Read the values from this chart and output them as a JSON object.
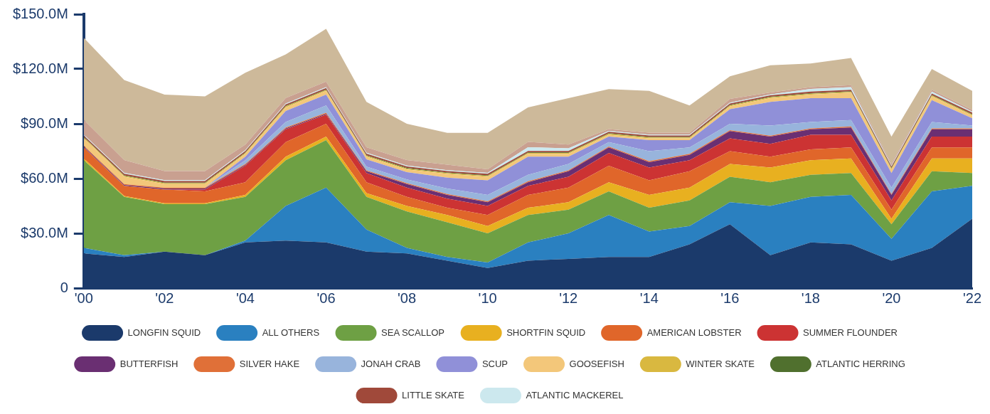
{
  "chart_data": {
    "type": "area",
    "stacked": true,
    "x": [
      2000,
      2001,
      2002,
      2003,
      2004,
      2005,
      2006,
      2007,
      2008,
      2009,
      2010,
      2011,
      2012,
      2013,
      2014,
      2015,
      2016,
      2017,
      2018,
      2019,
      2020,
      2021,
      2022
    ],
    "xlim": [
      2000,
      2022
    ],
    "xticks": [
      {
        "value": 2000,
        "label": "'00"
      },
      {
        "value": 2002,
        "label": "'02"
      },
      {
        "value": 2004,
        "label": "'04"
      },
      {
        "value": 2006,
        "label": "'06"
      },
      {
        "value": 2008,
        "label": "'08"
      },
      {
        "value": 2010,
        "label": "'10"
      },
      {
        "value": 2012,
        "label": "'12"
      },
      {
        "value": 2014,
        "label": "'14"
      },
      {
        "value": 2016,
        "label": "'16"
      },
      {
        "value": 2018,
        "label": "'18"
      },
      {
        "value": 2020,
        "label": "'20"
      },
      {
        "value": 2022,
        "label": "'22"
      }
    ],
    "ylim": [
      0,
      150
    ],
    "yticks": [
      0,
      {
        "value": 30,
        "label": "$30.0M"
      },
      {
        "value": 60,
        "label": "$60.0M"
      },
      {
        "value": 90,
        "label": "$90.0M"
      },
      {
        "value": 120,
        "label": "$120.0M"
      },
      {
        "value": 150,
        "label": "$150.0M"
      }
    ],
    "grid": false,
    "legend": "bottom",
    "series": [
      {
        "name": "LONGFIN SQUID",
        "color": "#1b3a6b",
        "values": [
          19,
          17,
          20,
          18,
          25,
          26,
          25,
          20,
          19,
          15,
          11,
          15,
          16,
          17,
          17,
          24,
          35,
          18,
          25,
          24,
          15,
          22,
          38
        ]
      },
      {
        "name": "ALL OTHERS",
        "color": "#2a80c0",
        "values": [
          3,
          1,
          0,
          0,
          1,
          19,
          30,
          12,
          3,
          2,
          3,
          10,
          14,
          23,
          14,
          10,
          12,
          27,
          25,
          27,
          12,
          31,
          18
        ]
      },
      {
        "name": "SEA SCALLOP",
        "color": "#6ea044",
        "values": [
          48,
          32,
          26,
          28,
          24,
          25,
          26,
          18,
          20,
          19,
          16,
          15,
          13,
          13,
          13,
          14,
          14,
          13,
          12,
          12,
          8,
          11,
          7
        ]
      },
      {
        "name": "SHORTFIN SQUID",
        "color": "#e8b020",
        "values": [
          1,
          0.5,
          0.5,
          0.5,
          1,
          2,
          2,
          2,
          3,
          4,
          4,
          4,
          4,
          5,
          7,
          7,
          7,
          8,
          8,
          8,
          3,
          7,
          8
        ]
      },
      {
        "name": "AMERICAN LOBSTER",
        "color": "#e0662a",
        "values": [
          6,
          5.5,
          7.5,
          6.5,
          7,
          8,
          7,
          6,
          5,
          4,
          6,
          7,
          8,
          9,
          8,
          9,
          7,
          6,
          6,
          6,
          5,
          6,
          6
        ]
      },
      {
        "name": "SUMMER FLOUNDER",
        "color": "#cc3333",
        "values": [
          0,
          0,
          0,
          1,
          9,
          7,
          5,
          5,
          5,
          5,
          5,
          5,
          6,
          7,
          7,
          6,
          7,
          7,
          8,
          7,
          5,
          6,
          6
        ]
      },
      {
        "name": "BUTTERFISH",
        "color": "#6a2f72",
        "values": [
          0.5,
          0.5,
          0.5,
          0.5,
          0.5,
          0.5,
          0.5,
          1,
          2,
          2,
          2,
          2,
          3,
          3,
          3,
          3,
          4,
          4,
          3,
          4,
          3,
          4,
          4
        ]
      },
      {
        "name": "SILVER HAKE",
        "color": "#e07038",
        "values": [
          0.5,
          0.5,
          0.5,
          0.5,
          0.5,
          0.5,
          0.5,
          0.5,
          0.5,
          0.5,
          0.5,
          0.5,
          0.5,
          0.5,
          0.5,
          0.5,
          0.5,
          0.5,
          0.5,
          0.5,
          0.5,
          0.5,
          0.5
        ]
      },
      {
        "name": "JONAH CRAB",
        "color": "#98b4dc",
        "values": [
          0,
          0,
          0,
          0,
          2,
          3,
          4,
          2,
          2,
          3,
          3.5,
          3.5,
          3.5,
          2.5,
          5.5,
          3.5,
          3.5,
          5.5,
          3.5,
          3.5,
          3.5,
          3.5,
          1.5
        ]
      },
      {
        "name": "SCUP",
        "color": "#9090d8",
        "values": [
          0,
          0,
          0,
          0,
          2,
          6,
          6,
          4,
          4,
          6,
          8,
          10,
          4,
          3,
          6,
          4,
          8,
          13,
          13,
          12,
          8,
          12,
          4
        ]
      },
      {
        "name": "GOOSEFISH",
        "color": "#f3c77a",
        "values": [
          4,
          4,
          2,
          2,
          1.5,
          2,
          2,
          1.5,
          1.5,
          2,
          2,
          1.5,
          1.5,
          1,
          1,
          1,
          1.5,
          2,
          2,
          3,
          2,
          2,
          1.5
        ]
      },
      {
        "name": "WINTER SKATE",
        "color": "#d9b840",
        "values": [
          0.5,
          0.5,
          0.5,
          0.5,
          0.5,
          0.5,
          0.5,
          0.5,
          0.5,
          0.5,
          0.5,
          0.5,
          0.5,
          0.5,
          0.5,
          0.5,
          0.5,
          0.5,
          0.5,
          0.5,
          0.5,
          0.5,
          0.5
        ]
      },
      {
        "name": "ATLANTIC HERRING",
        "color": "#50702e",
        "values": [
          0.3,
          0.3,
          0.3,
          0.3,
          0.3,
          0.3,
          0.3,
          0.3,
          0.3,
          0.3,
          0.3,
          0.3,
          0.3,
          0.3,
          0.3,
          0.3,
          0.3,
          0.3,
          0.3,
          0.3,
          0.3,
          0.3,
          0.3
        ]
      },
      {
        "name": "LITTLE SKATE",
        "color": "#a0493a",
        "values": [
          0.8,
          0.8,
          0.8,
          0.8,
          0.8,
          0.8,
          0.8,
          0.8,
          0.8,
          0.8,
          0.8,
          0.8,
          0.8,
          0.8,
          0.8,
          0.8,
          0.8,
          0.8,
          0.8,
          0.8,
          0.8,
          0.8,
          0.8
        ]
      },
      {
        "name": "ATLANTIC MACKEREL",
        "color": "#cce8ee",
        "values": [
          0.5,
          0.5,
          0.5,
          0.5,
          0.5,
          0.5,
          0.5,
          0.5,
          0.5,
          0.5,
          0.5,
          2,
          1.5,
          0.5,
          0.5,
          0.5,
          0.5,
          0.5,
          1.5,
          1.5,
          0.5,
          1,
          0.5
        ]
      },
      {
        "color": "#c9a090",
        "values": [
          8,
          7,
          5,
          5,
          3,
          3,
          3,
          3,
          3,
          3,
          2,
          3,
          2,
          1,
          1,
          1,
          2,
          1,
          1,
          1,
          1,
          1,
          1
        ]
      },
      {
        "color": "#cdb99a",
        "values": [
          44.9,
          43.9,
          41.9,
          40.9,
          39.4,
          23.9,
          28.9,
          24.9,
          19.9,
          17.4,
          19.9,
          18.9,
          25.4,
          21.9,
          22.9,
          14.9,
          12.4,
          14.9,
          12.9,
          14.9,
          14.9,
          11.4,
          10.4
        ]
      }
    ]
  }
}
